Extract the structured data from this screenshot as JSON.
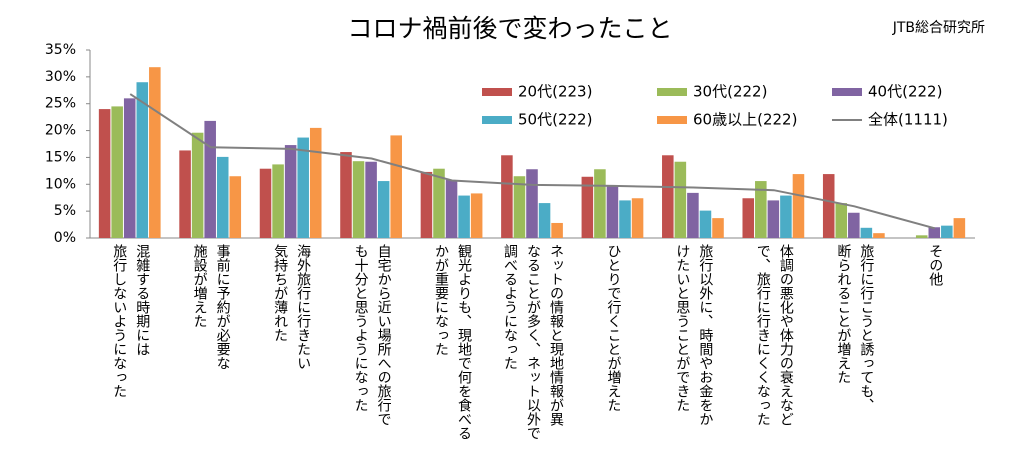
{
  "chart_data": {
    "type": "bar",
    "title": "コロナ禍前後で変わったこと",
    "source": "JTB総合研究所",
    "categories": [
      "混雑する時期には\n旅行しないようになった",
      "事前に予約が必要な\n施設が増えた",
      "海外旅行に行きたい\n気持ちが薄れた",
      "自宅から近い場所への旅行で\nも十分と思うようになった",
      "観光よりも、現地で何を食べる\nかが重要になった",
      "ネットの情報と現地情報が異\nなることが多く、ネット以外で\n調べるようになった",
      "ひとりで行くことが増えた",
      "旅行以外に、時間やお金をか\nけたいと思うことができた",
      "体調の悪化や体力の衰えなど\nで、旅行に行きにくくなった",
      "旅行に行こうと誘っても、\n断られることが増えた",
      "その他"
    ],
    "series": [
      {
        "name": "20代(223)",
        "color": "#c0504d",
        "values": [
          24,
          16.3,
          12.9,
          16.0,
          12.3,
          15.4,
          11.4,
          15.4,
          7.4,
          11.9,
          0
        ]
      },
      {
        "name": "30代(222)",
        "color": "#9bbb59",
        "values": [
          24.5,
          19.6,
          13.7,
          14.3,
          12.9,
          11.5,
          12.8,
          14.2,
          10.6,
          6.5,
          0.5
        ]
      },
      {
        "name": "40代(222)",
        "color": "#8064a2",
        "values": [
          26,
          21.8,
          17.3,
          14.2,
          10.8,
          12.8,
          9.7,
          8.4,
          7.0,
          4.7,
          2.0
        ]
      },
      {
        "name": "50代(222)",
        "color": "#4bacc6",
        "values": [
          29,
          15.1,
          18.7,
          10.6,
          7.9,
          6.5,
          7.0,
          5.1,
          7.9,
          1.9,
          2.3
        ]
      },
      {
        "name": "60歳以上(222)",
        "color": "#f79646",
        "values": [
          31.8,
          11.5,
          20.5,
          19.1,
          8.3,
          2.8,
          7.4,
          3.7,
          11.9,
          0.9,
          3.7
        ]
      },
      {
        "name": "全体(1111)",
        "color": "#808080",
        "type": "line",
        "values": [
          26.8,
          16.9,
          16.6,
          14.8,
          10.7,
          9.9,
          9.7,
          9.4,
          8.9,
          5.9,
          1.8
        ]
      }
    ],
    "ylim": [
      0,
      35
    ],
    "yticks": [
      {
        "value": 0,
        "label": "0%"
      },
      {
        "value": 5,
        "label": "5%"
      },
      {
        "value": 10,
        "label": "10%"
      },
      {
        "value": 15,
        "label": "15%"
      },
      {
        "value": 20,
        "label": "20%"
      },
      {
        "value": 25,
        "label": "25%"
      },
      {
        "value": 30,
        "label": "30%"
      },
      {
        "value": 35,
        "label": "35%"
      }
    ],
    "grid": false
  }
}
